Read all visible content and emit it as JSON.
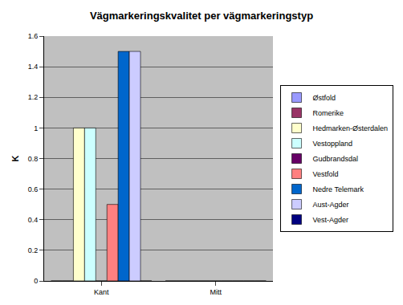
{
  "chart_data": {
    "type": "bar",
    "title": "Vägmarkeringskvalitet per vägmarkeringstyp",
    "ylabel": "K",
    "categories": [
      "Kant",
      "Mitt"
    ],
    "series": [
      {
        "name": "Østfold",
        "color": "#9999ff",
        "values": [
          0,
          0
        ]
      },
      {
        "name": "Romerike",
        "color": "#993366",
        "values": [
          0,
          0
        ]
      },
      {
        "name": "Hedmarken-Østerdalen",
        "color": "#ffffcc",
        "values": [
          1.0,
          0
        ]
      },
      {
        "name": "Vestoppland",
        "color": "#ccffff",
        "values": [
          1.0,
          0
        ]
      },
      {
        "name": "Gudbrandsdal",
        "color": "#660066",
        "values": [
          0,
          0
        ]
      },
      {
        "name": "Vestfold",
        "color": "#ff8080",
        "values": [
          0.5,
          0
        ]
      },
      {
        "name": "Nedre Telemark",
        "color": "#0066cc",
        "values": [
          1.5,
          0
        ]
      },
      {
        "name": "Aust-Agder",
        "color": "#ccccff",
        "values": [
          1.5,
          0
        ]
      },
      {
        "name": "Vest-Agder",
        "color": "#000080",
        "values": [
          0,
          0
        ]
      }
    ],
    "ylim": [
      0,
      1.6
    ],
    "yticks": [
      0,
      0.2,
      0.4,
      0.6,
      0.8,
      1,
      1.2,
      1.4,
      1.6
    ],
    "grid": true,
    "legend": "right"
  }
}
